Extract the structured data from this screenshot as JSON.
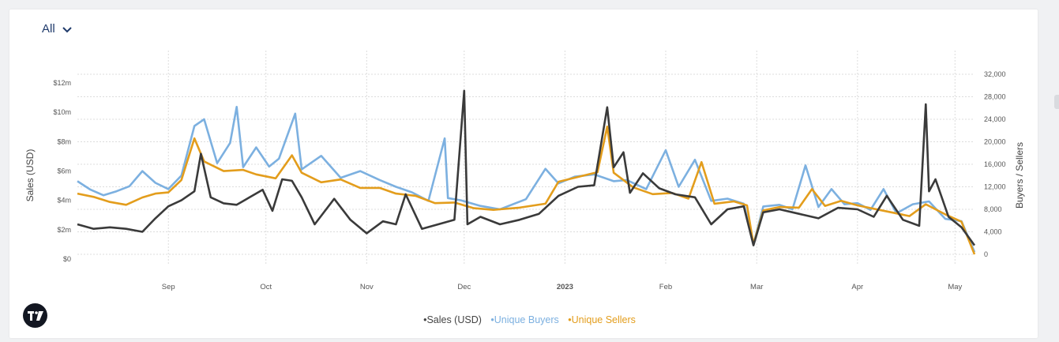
{
  "range_selector": {
    "label": "All"
  },
  "legend": {
    "sales": "•Sales (USD)",
    "buyers": "•Unique Buyers",
    "sellers": "•Unique Sellers"
  },
  "colors": {
    "sales": "#3a3a3a",
    "buyers": "#7cb0e0",
    "sellers": "#e39d1c",
    "grid": "#dcdcdc",
    "text": "#555555"
  },
  "icons": {
    "logo": "tradingview-logo-icon",
    "dropdown": "chevron-down-icon"
  },
  "chart_data": {
    "type": "line",
    "x_axis": {
      "type": "date",
      "start": "2022-08-04",
      "end": "2023-05-07",
      "tick_labels": [
        "Sep",
        "Oct",
        "Nov",
        "Dec",
        "2023",
        "Feb",
        "Mar",
        "Apr",
        "May"
      ]
    },
    "left_axis": {
      "label": "Sales (USD)",
      "range": [
        0,
        12000000
      ],
      "tick_labels": [
        "$0",
        "$2m",
        "$4m",
        "$6m",
        "$8m",
        "$10m",
        "$12m"
      ]
    },
    "right_axis": {
      "label": "Buyers / Sellers",
      "range": [
        0,
        32000
      ],
      "tick_labels": [
        "0",
        "4,000",
        "8,000",
        "12,000",
        "16,000",
        "20,000",
        "24,000",
        "28,000",
        "32,000"
      ]
    },
    "grid": true,
    "legend_position": "bottom-center",
    "series": [
      {
        "name": "Sales (USD)",
        "axis": "left",
        "points": [
          [
            "2022-08-04",
            2000000
          ],
          [
            "2022-08-09",
            1700000
          ],
          [
            "2022-08-14",
            1800000
          ],
          [
            "2022-08-19",
            1700000
          ],
          [
            "2022-08-24",
            1500000
          ],
          [
            "2022-08-28",
            2400000
          ],
          [
            "2022-09-01",
            3200000
          ],
          [
            "2022-09-05",
            3600000
          ],
          [
            "2022-09-09",
            4200000
          ],
          [
            "2022-09-11",
            6700000
          ],
          [
            "2022-09-14",
            3800000
          ],
          [
            "2022-09-18",
            3400000
          ],
          [
            "2022-09-22",
            3300000
          ],
          [
            "2022-09-26",
            3800000
          ],
          [
            "2022-09-30",
            4300000
          ],
          [
            "2022-10-03",
            2900000
          ],
          [
            "2022-10-06",
            5000000
          ],
          [
            "2022-10-09",
            4900000
          ],
          [
            "2022-10-12",
            3800000
          ],
          [
            "2022-10-16",
            2000000
          ],
          [
            "2022-10-22",
            3700000
          ],
          [
            "2022-10-27",
            2300000
          ],
          [
            "2022-11-01",
            1400000
          ],
          [
            "2022-11-06",
            2200000
          ],
          [
            "2022-11-10",
            2000000
          ],
          [
            "2022-11-13",
            4000000
          ],
          [
            "2022-11-18",
            1700000
          ],
          [
            "2022-11-23",
            2000000
          ],
          [
            "2022-11-28",
            2300000
          ],
          [
            "2022-12-01",
            10900000
          ],
          [
            "2022-12-02",
            2000000
          ],
          [
            "2022-12-06",
            2500000
          ],
          [
            "2022-12-12",
            2000000
          ],
          [
            "2022-12-18",
            2300000
          ],
          [
            "2022-12-24",
            2700000
          ],
          [
            "2022-12-30",
            3900000
          ],
          [
            "2023-01-05",
            4500000
          ],
          [
            "2023-01-10",
            4600000
          ],
          [
            "2023-01-14",
            9800000
          ],
          [
            "2023-01-16",
            5800000
          ],
          [
            "2023-01-19",
            6800000
          ],
          [
            "2023-01-21",
            4100000
          ],
          [
            "2023-01-25",
            5400000
          ],
          [
            "2023-01-30",
            4400000
          ],
          [
            "2023-02-04",
            4000000
          ],
          [
            "2023-02-10",
            3800000
          ],
          [
            "2023-02-15",
            2000000
          ],
          [
            "2023-02-20",
            3000000
          ],
          [
            "2023-02-25",
            3200000
          ],
          [
            "2023-02-28",
            600000
          ],
          [
            "2023-03-03",
            2800000
          ],
          [
            "2023-03-08",
            3000000
          ],
          [
            "2023-03-14",
            2700000
          ],
          [
            "2023-03-20",
            2400000
          ],
          [
            "2023-03-26",
            3100000
          ],
          [
            "2023-04-01",
            3000000
          ],
          [
            "2023-04-06",
            2500000
          ],
          [
            "2023-04-10",
            3900000
          ],
          [
            "2023-04-15",
            2300000
          ],
          [
            "2023-04-20",
            1900000
          ],
          [
            "2023-04-22",
            10000000
          ],
          [
            "2023-04-23",
            4200000
          ],
          [
            "2023-04-25",
            5000000
          ],
          [
            "2023-04-29",
            2500000
          ],
          [
            "2023-05-03",
            1800000
          ],
          [
            "2023-05-07",
            600000
          ]
        ]
      },
      {
        "name": "Unique Buyers",
        "axis": "right",
        "points": [
          [
            "2022-08-04",
            13000
          ],
          [
            "2022-08-08",
            11500
          ],
          [
            "2022-08-12",
            10500
          ],
          [
            "2022-08-16",
            11200
          ],
          [
            "2022-08-20",
            12100
          ],
          [
            "2022-08-24",
            14800
          ],
          [
            "2022-08-28",
            12700
          ],
          [
            "2022-09-01",
            11600
          ],
          [
            "2022-09-05",
            14000
          ],
          [
            "2022-09-09",
            22800
          ],
          [
            "2022-09-12",
            24000
          ],
          [
            "2022-09-16",
            16200
          ],
          [
            "2022-09-20",
            19800
          ],
          [
            "2022-09-22",
            26200
          ],
          [
            "2022-09-24",
            15500
          ],
          [
            "2022-09-28",
            19000
          ],
          [
            "2022-10-02",
            15600
          ],
          [
            "2022-10-05",
            17000
          ],
          [
            "2022-10-10",
            25000
          ],
          [
            "2022-10-12",
            15100
          ],
          [
            "2022-10-18",
            17500
          ],
          [
            "2022-10-24",
            13600
          ],
          [
            "2022-10-30",
            14800
          ],
          [
            "2022-11-05",
            13200
          ],
          [
            "2022-11-10",
            12000
          ],
          [
            "2022-11-15",
            11000
          ],
          [
            "2022-11-20",
            9500
          ],
          [
            "2022-11-25",
            20600
          ],
          [
            "2022-11-26",
            10000
          ],
          [
            "2022-11-30",
            9600
          ],
          [
            "2022-12-06",
            8600
          ],
          [
            "2022-12-12",
            8000
          ],
          [
            "2022-12-20",
            9800
          ],
          [
            "2022-12-26",
            15200
          ],
          [
            "2022-12-30",
            12600
          ],
          [
            "2023-01-04",
            13800
          ],
          [
            "2023-01-10",
            14200
          ],
          [
            "2023-01-16",
            13000
          ],
          [
            "2023-01-20",
            13200
          ],
          [
            "2023-01-26",
            11600
          ],
          [
            "2023-02-01",
            18500
          ],
          [
            "2023-02-05",
            12000
          ],
          [
            "2023-02-10",
            16800
          ],
          [
            "2023-02-15",
            9500
          ],
          [
            "2023-02-20",
            9900
          ],
          [
            "2023-02-25",
            9000
          ],
          [
            "2023-02-28",
            1800
          ],
          [
            "2023-03-03",
            8500
          ],
          [
            "2023-03-08",
            8800
          ],
          [
            "2023-03-12",
            8000
          ],
          [
            "2023-03-16",
            15800
          ],
          [
            "2023-03-20",
            8400
          ],
          [
            "2023-03-24",
            11600
          ],
          [
            "2023-03-28",
            8900
          ],
          [
            "2023-04-01",
            9100
          ],
          [
            "2023-04-05",
            7900
          ],
          [
            "2023-04-09",
            11600
          ],
          [
            "2023-04-13",
            7300
          ],
          [
            "2023-04-18",
            8900
          ],
          [
            "2023-04-23",
            9400
          ],
          [
            "2023-04-28",
            6300
          ],
          [
            "2023-05-03",
            5900
          ],
          [
            "2023-05-07",
            400
          ]
        ]
      },
      {
        "name": "Unique Sellers",
        "axis": "right",
        "points": [
          [
            "2022-08-04",
            10800
          ],
          [
            "2022-08-09",
            10200
          ],
          [
            "2022-08-14",
            9300
          ],
          [
            "2022-08-19",
            8800
          ],
          [
            "2022-08-24",
            10100
          ],
          [
            "2022-08-28",
            10800
          ],
          [
            "2022-09-01",
            11000
          ],
          [
            "2022-09-05",
            13200
          ],
          [
            "2022-09-09",
            20600
          ],
          [
            "2022-09-12",
            16500
          ],
          [
            "2022-09-18",
            14800
          ],
          [
            "2022-09-24",
            15000
          ],
          [
            "2022-09-28",
            14200
          ],
          [
            "2022-10-04",
            13500
          ],
          [
            "2022-10-09",
            17600
          ],
          [
            "2022-10-12",
            14500
          ],
          [
            "2022-10-18",
            12800
          ],
          [
            "2022-10-24",
            13300
          ],
          [
            "2022-10-30",
            11800
          ],
          [
            "2022-11-05",
            11800
          ],
          [
            "2022-11-10",
            10800
          ],
          [
            "2022-11-16",
            10400
          ],
          [
            "2022-11-22",
            9100
          ],
          [
            "2022-11-28",
            9200
          ],
          [
            "2022-12-04",
            8200
          ],
          [
            "2022-12-10",
            7900
          ],
          [
            "2022-12-18",
            8300
          ],
          [
            "2022-12-26",
            9000
          ],
          [
            "2022-12-30",
            12900
          ],
          [
            "2023-01-06",
            13900
          ],
          [
            "2023-01-11",
            14600
          ],
          [
            "2023-01-14",
            22700
          ],
          [
            "2023-01-16",
            14500
          ],
          [
            "2023-01-22",
            11900
          ],
          [
            "2023-01-28",
            10700
          ],
          [
            "2023-02-03",
            10900
          ],
          [
            "2023-02-08",
            9900
          ],
          [
            "2023-02-12",
            16400
          ],
          [
            "2023-02-16",
            9000
          ],
          [
            "2023-02-22",
            9400
          ],
          [
            "2023-02-26",
            8700
          ],
          [
            "2023-02-28",
            1800
          ],
          [
            "2023-03-03",
            7800
          ],
          [
            "2023-03-08",
            8400
          ],
          [
            "2023-03-14",
            8300
          ],
          [
            "2023-03-18",
            11600
          ],
          [
            "2023-03-22",
            8600
          ],
          [
            "2023-03-27",
            9500
          ],
          [
            "2023-04-01",
            8700
          ],
          [
            "2023-04-06",
            8100
          ],
          [
            "2023-04-12",
            7400
          ],
          [
            "2023-04-17",
            6800
          ],
          [
            "2023-04-22",
            8900
          ],
          [
            "2023-04-28",
            7100
          ],
          [
            "2023-05-03",
            5800
          ],
          [
            "2023-05-07",
            0
          ]
        ]
      }
    ]
  }
}
